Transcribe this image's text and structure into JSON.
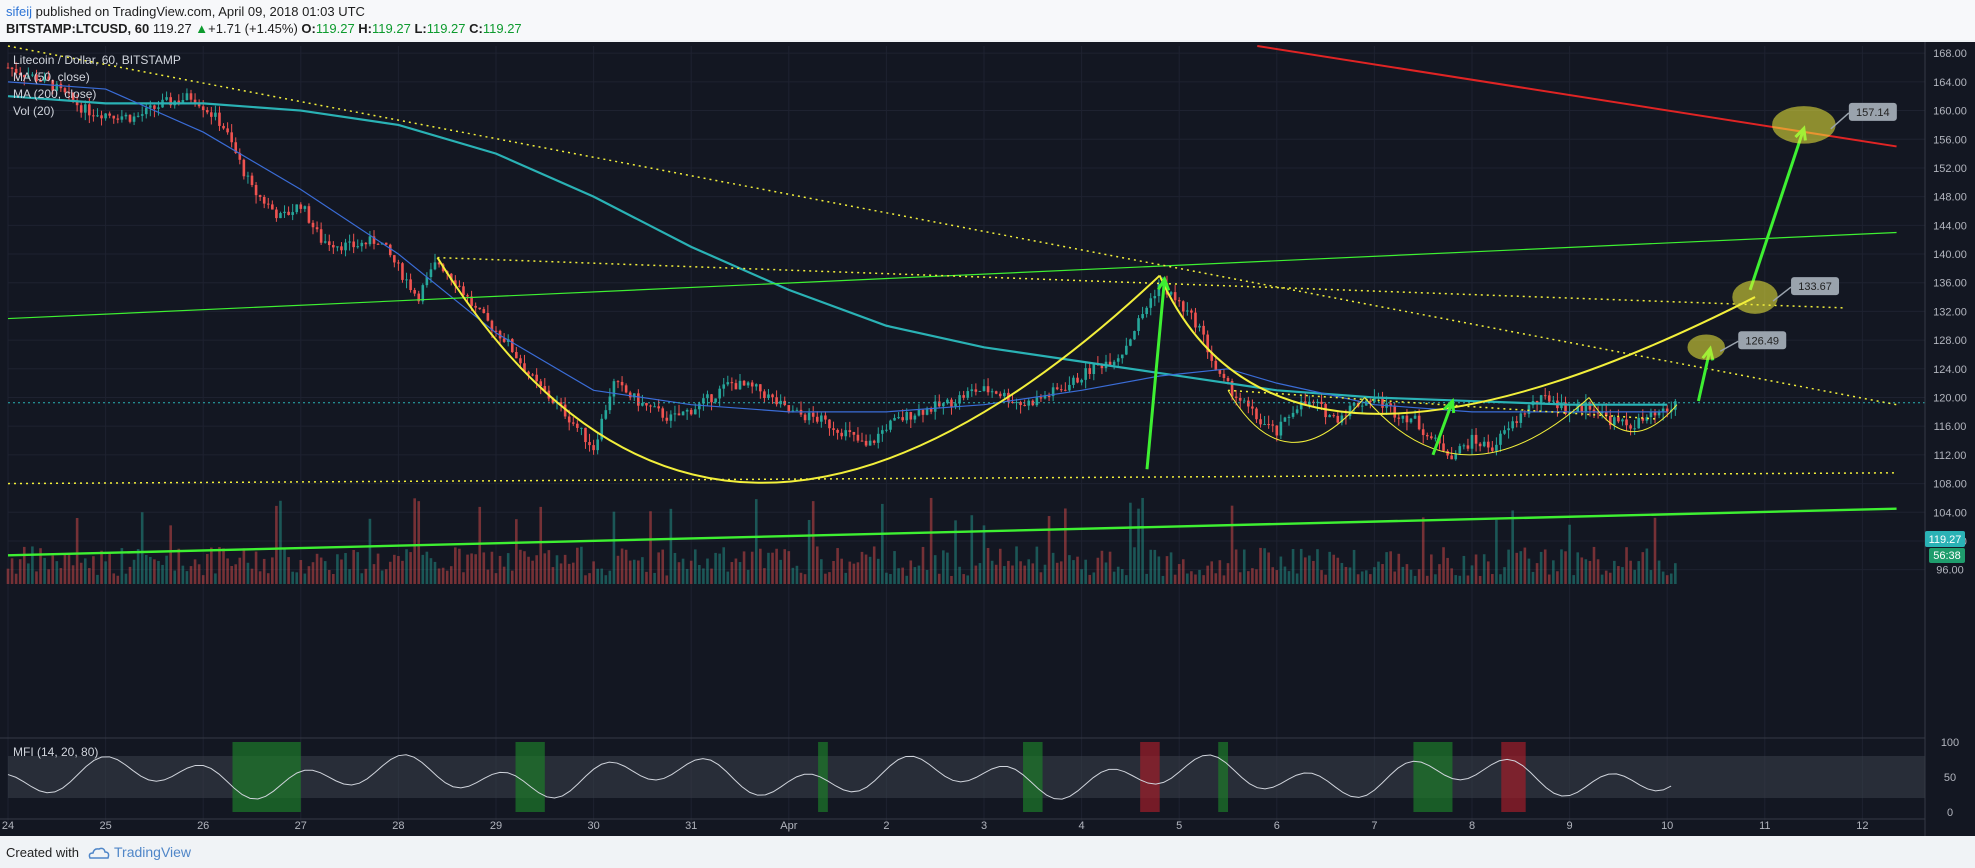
{
  "header": {
    "author": "sifeij",
    "published_text": "published on TradingView.com, April 09, 2018 01:03 UTC",
    "symbol": "BITSTAMP:LTCUSD, 60",
    "last": "119.27",
    "change": "+1.71 (+1.45%)",
    "o_label": "O:",
    "o_value": "119.27",
    "h_label": "H:",
    "h_value": "119.27",
    "l_label": "L:",
    "l_value": "119.27",
    "c_label": "C:",
    "c_value": "119.27"
  },
  "legend": {
    "title": "Litecoin / Dollar, 60, BITSTAMP",
    "ma50": "MA (50, close)",
    "ma200": "MA (200, close)",
    "vol": "Vol (20)",
    "mfi": "MFI (14, 20, 80)"
  },
  "price_tag": "119.27",
  "countdown_tag": "56:38",
  "footer": {
    "created_with": "Created with",
    "brand": "TradingView"
  },
  "colors": {
    "background": "#131722",
    "up": "#26a69a",
    "down": "#ef5350",
    "ma50": "#3a6cd6",
    "ma200": "#2ab2b5",
    "pattern": "#f2ef3b",
    "arrow": "#3ef032",
    "resistance": "#e02424"
  },
  "chart_data": {
    "type": "candlestick",
    "symbol": "LTCUSD",
    "interval": "60",
    "x_ticks": [
      "24",
      "25",
      "26",
      "27",
      "28",
      "29",
      "30",
      "31",
      "Apr",
      "2",
      "3",
      "4",
      "5",
      "6",
      "7",
      "8",
      "9",
      "10",
      "11",
      "12"
    ],
    "y_ticks": [
      "168.00",
      "164.00",
      "160.00",
      "156.00",
      "152.00",
      "148.00",
      "144.00",
      "140.00",
      "136.00",
      "132.00",
      "128.00",
      "124.00",
      "120.00",
      "116.00",
      "112.00",
      "108.00",
      "104.00",
      "100.00",
      "96.00"
    ],
    "ylim": [
      94,
      169
    ],
    "close_path": [
      [
        24.0,
        166
      ],
      [
        24.4,
        164
      ],
      [
        24.8,
        160
      ],
      [
        25.3,
        159
      ],
      [
        25.6,
        161
      ],
      [
        25.9,
        162
      ],
      [
        26.2,
        158
      ],
      [
        26.5,
        149
      ],
      [
        26.8,
        145
      ],
      [
        27.0,
        147
      ],
      [
        27.2,
        142
      ],
      [
        27.5,
        141
      ],
      [
        27.8,
        142
      ],
      [
        28.0,
        138
      ],
      [
        28.2,
        134
      ],
      [
        28.4,
        139
      ],
      [
        28.6,
        136
      ],
      [
        28.8,
        132
      ],
      [
        29.1,
        128
      ],
      [
        29.4,
        122
      ],
      [
        29.7,
        118
      ],
      [
        30.0,
        113
      ],
      [
        30.2,
        122
      ],
      [
        30.5,
        119
      ],
      [
        30.8,
        117
      ],
      [
        31.1,
        119
      ],
      [
        31.4,
        122
      ],
      [
        31.7,
        121
      ],
      [
        32.0,
        118
      ],
      [
        32.3,
        117
      ],
      [
        32.6,
        115
      ],
      [
        32.8,
        113
      ],
      [
        33.0,
        116
      ],
      [
        33.3,
        118
      ],
      [
        33.6,
        119
      ],
      [
        33.9,
        121
      ],
      [
        34.1,
        121
      ],
      [
        34.4,
        119
      ],
      [
        34.6,
        120
      ],
      [
        34.9,
        122
      ],
      [
        35.1,
        124
      ],
      [
        35.4,
        126
      ],
      [
        35.6,
        131
      ],
      [
        35.8,
        136
      ],
      [
        36.0,
        133
      ],
      [
        36.2,
        130
      ],
      [
        36.4,
        123
      ],
      [
        36.6,
        120
      ],
      [
        36.8,
        117
      ],
      [
        37.0,
        115
      ],
      [
        37.2,
        119
      ],
      [
        37.4,
        119
      ],
      [
        37.6,
        117
      ],
      [
        37.8,
        119
      ],
      [
        38.0,
        120
      ],
      [
        38.2,
        118
      ],
      [
        38.4,
        117
      ],
      [
        38.6,
        114
      ],
      [
        38.8,
        112
      ],
      [
        39.0,
        114
      ],
      [
        39.2,
        113
      ],
      [
        39.4,
        116
      ],
      [
        39.6,
        119
      ],
      [
        39.8,
        120
      ],
      [
        40.0,
        118
      ],
      [
        40.2,
        119
      ],
      [
        40.4,
        117
      ],
      [
        40.6,
        116
      ],
      [
        40.8,
        117
      ],
      [
        41.0,
        118
      ],
      [
        41.1,
        119.27
      ]
    ],
    "ma50_path": [
      [
        24.0,
        164
      ],
      [
        25.0,
        163
      ],
      [
        26.0,
        157
      ],
      [
        27.0,
        149
      ],
      [
        28.0,
        140
      ],
      [
        29.0,
        129
      ],
      [
        30.0,
        121
      ],
      [
        31.0,
        119
      ],
      [
        32.0,
        118
      ],
      [
        33.0,
        118
      ],
      [
        34.0,
        119
      ],
      [
        35.0,
        121
      ],
      [
        35.8,
        123
      ],
      [
        36.5,
        124
      ],
      [
        37.0,
        122
      ],
      [
        38.0,
        119
      ],
      [
        39.0,
        118
      ],
      [
        40.0,
        118
      ],
      [
        41.0,
        118
      ]
    ],
    "ma200_path": [
      [
        24.0,
        162
      ],
      [
        25.0,
        161
      ],
      [
        26.0,
        161
      ],
      [
        27.0,
        160
      ],
      [
        28.0,
        158
      ],
      [
        29.0,
        154
      ],
      [
        30.0,
        148
      ],
      [
        31.0,
        141
      ],
      [
        32.0,
        135
      ],
      [
        33.0,
        130
      ],
      [
        34.0,
        127
      ],
      [
        35.0,
        125
      ],
      [
        36.0,
        123
      ],
      [
        37.0,
        121
      ],
      [
        38.0,
        120
      ],
      [
        39.0,
        119.5
      ],
      [
        40.0,
        119
      ],
      [
        41.0,
        119
      ]
    ],
    "annotations": {
      "labels": [
        "157.14",
        "133.67",
        "126.49"
      ],
      "targets": [
        {
          "label": "157.14",
          "x": 42.4,
          "y": 158
        },
        {
          "label": "133.67",
          "x": 41.9,
          "y": 134
        },
        {
          "label": "126.49",
          "x": 41.4,
          "y": 127
        }
      ],
      "resistance_line": [
        [
          36.8,
          169
        ],
        [
          43.35,
          155
        ]
      ],
      "support_green_thin": [
        [
          24.0,
          131
        ],
        [
          43.35,
          143
        ]
      ],
      "support_green_thick": [
        [
          24.0,
          98
        ],
        [
          43.35,
          104.5
        ]
      ]
    },
    "mfi": {
      "ylim": [
        0,
        100
      ],
      "y_ticks": [
        "100",
        "50",
        "0"
      ],
      "bands": [
        20,
        80
      ]
    }
  }
}
